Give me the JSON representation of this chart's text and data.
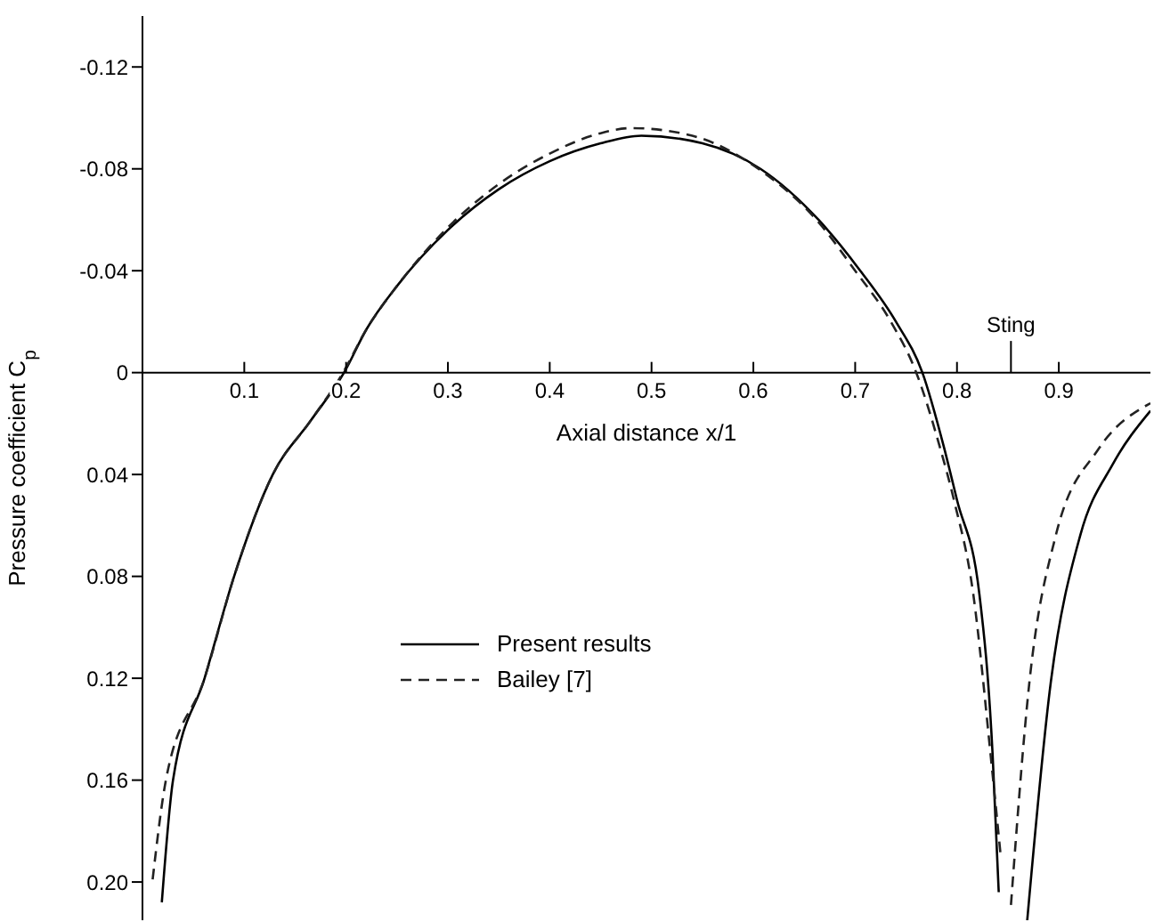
{
  "chart_data": {
    "type": "line",
    "xlabel": "Axial distance x/1",
    "ylabel": "Pressure coefficient C$_{p}$",
    "ref_lines": [
      {
        "axis": "x",
        "value": 0.853,
        "label": "Sting"
      }
    ],
    "xlim": [
      0,
      0.99
    ],
    "xticks": [
      0.1,
      0.2,
      0.3,
      0.4,
      0.5,
      0.6,
      0.7,
      0.8,
      0.9
    ],
    "ylim": [
      0.215,
      -0.14
    ],
    "yticks": [
      -0.12,
      -0.08,
      -0.04,
      0,
      0.04,
      0.08,
      0.12,
      0.16,
      {
        "value": 0.2,
        "label": "0.20"
      }
    ],
    "legend": "left",
    "grid": false,
    "marker": "none",
    "series": [
      {
        "name": "Present results",
        "color": "#000000",
        "line_style": "solid",
        "x": [
          0.019,
          0.03,
          0.061,
          0.09,
          0.128,
          0.165,
          0.198,
          0.22,
          0.25,
          0.3,
          0.35,
          0.4,
          0.45,
          0.49,
          0.55,
          0.607,
          0.664,
          0.705,
          0.74,
          0.766,
          0.787,
          0.8,
          0.822,
          0.835,
          0.841,
          0.855,
          0.869,
          0.892,
          0.921,
          0.953,
          0.99
        ],
        "values": [
          0.208,
          0.16,
          0.12,
          0.08,
          0.04,
          0.019,
          0,
          -0.017,
          -0.034,
          -0.056,
          -0.072,
          -0.083,
          -0.09,
          -0.093,
          -0.09,
          -0.08,
          -0.06,
          -0.04,
          -0.02,
          0,
          0.029,
          0.05,
          0.087,
          0.15,
          0.204,
          null,
          0.215,
          0.122,
          0.064,
          0.036,
          0.015
        ]
      },
      {
        "name": "Bailey [7]",
        "color": "#222222",
        "line_style": "dashed",
        "x": [
          0.01,
          0.023,
          0.061,
          0.09,
          0.128,
          0.165,
          0.197,
          0.22,
          0.25,
          0.3,
          0.35,
          0.4,
          0.45,
          0.48,
          0.54,
          0.605,
          0.662,
          0.7,
          0.735,
          0.76,
          0.783,
          0.797,
          0.816,
          0.833,
          0.843,
          0.848,
          0.853,
          0.871,
          0.897,
          0.939,
          0.99
        ],
        "values": [
          0.199,
          0.16,
          0.12,
          0.08,
          0.04,
          0.019,
          0,
          -0.017,
          -0.034,
          -0.057,
          -0.074,
          -0.086,
          -0.094,
          -0.096,
          -0.093,
          -0.08,
          -0.06,
          -0.04,
          -0.02,
          0,
          0.029,
          0.05,
          0.087,
          0.15,
          0.19,
          null,
          0.209,
          0.122,
          0.064,
          0.03,
          0.012
        ]
      }
    ]
  }
}
